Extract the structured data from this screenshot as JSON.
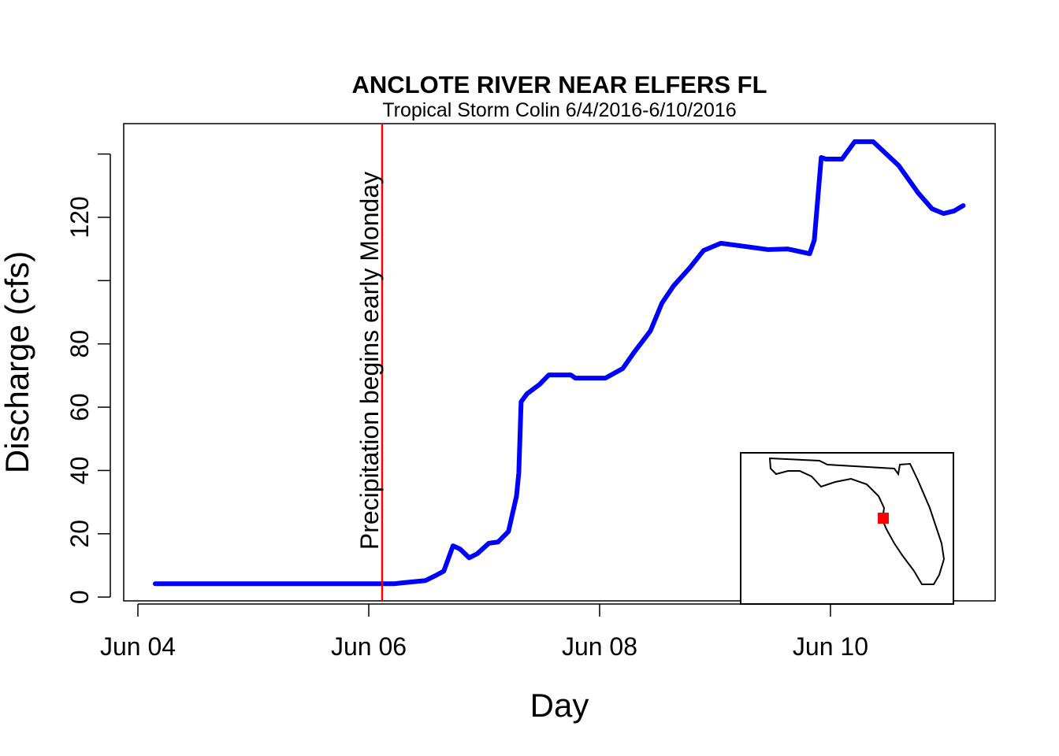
{
  "chart_data": {
    "type": "line",
    "title": "ANCLOTE RIVER NEAR ELFERS FL",
    "subtitle": "Tropical Storm Colin 6/4/2016-6/10/2016",
    "x_label": "Day",
    "y_label": "Discharge (cfs)",
    "xlim": [
      3.877,
      11.427
    ],
    "ylim": [
      -1.2,
      149.6
    ],
    "xticks": [
      {
        "value": 4,
        "label": "Jun 04"
      },
      {
        "value": 6,
        "label": "Jun 06"
      },
      {
        "value": 8,
        "label": "Jun 08"
      },
      {
        "value": 10,
        "label": "Jun 10"
      }
    ],
    "yticks": [
      0,
      20,
      40,
      60,
      80,
      {
        "value": 100,
        "label": null
      },
      120,
      {
        "value": 140,
        "label": null
      }
    ],
    "grid": false,
    "series": [
      {
        "name": "Discharge",
        "color": "#0000ff",
        "x": [
          4.15,
          6.22,
          6.29,
          6.49,
          6.59,
          6.65,
          6.73,
          6.79,
          6.87,
          6.94,
          7.04,
          7.12,
          7.21,
          7.28,
          7.3,
          7.32,
          7.37,
          7.48,
          7.56,
          7.75,
          7.79,
          8.05,
          8.2,
          8.3,
          8.44,
          8.54,
          8.64,
          8.78,
          8.9,
          9.05,
          9.26,
          9.46,
          9.63,
          9.82,
          9.86,
          9.92,
          9.96,
          10.1,
          10.21,
          10.37,
          10.59,
          10.76,
          10.88,
          10.98,
          11.07,
          11.15
        ],
        "values": [
          4.2,
          4.2,
          4.5,
          5.2,
          7,
          8.2,
          16.2,
          15.2,
          12.4,
          13.7,
          17,
          17.4,
          20.7,
          31.9,
          39.3,
          61.7,
          64.2,
          67.2,
          70.2,
          70.2,
          69.2,
          69.2,
          72.2,
          77.4,
          84.1,
          92.9,
          98.3,
          104,
          109.5,
          111.8,
          110.8,
          109.8,
          110,
          108.5,
          112.8,
          138.9,
          138.4,
          138.4,
          143.9,
          143.9,
          136.4,
          127.7,
          122.7,
          121.2,
          122,
          123.7
        ]
      }
    ],
    "annotation": {
      "text": "Precipitation begins early Monday",
      "x": 6.116,
      "color": "#ff0000"
    }
  }
}
